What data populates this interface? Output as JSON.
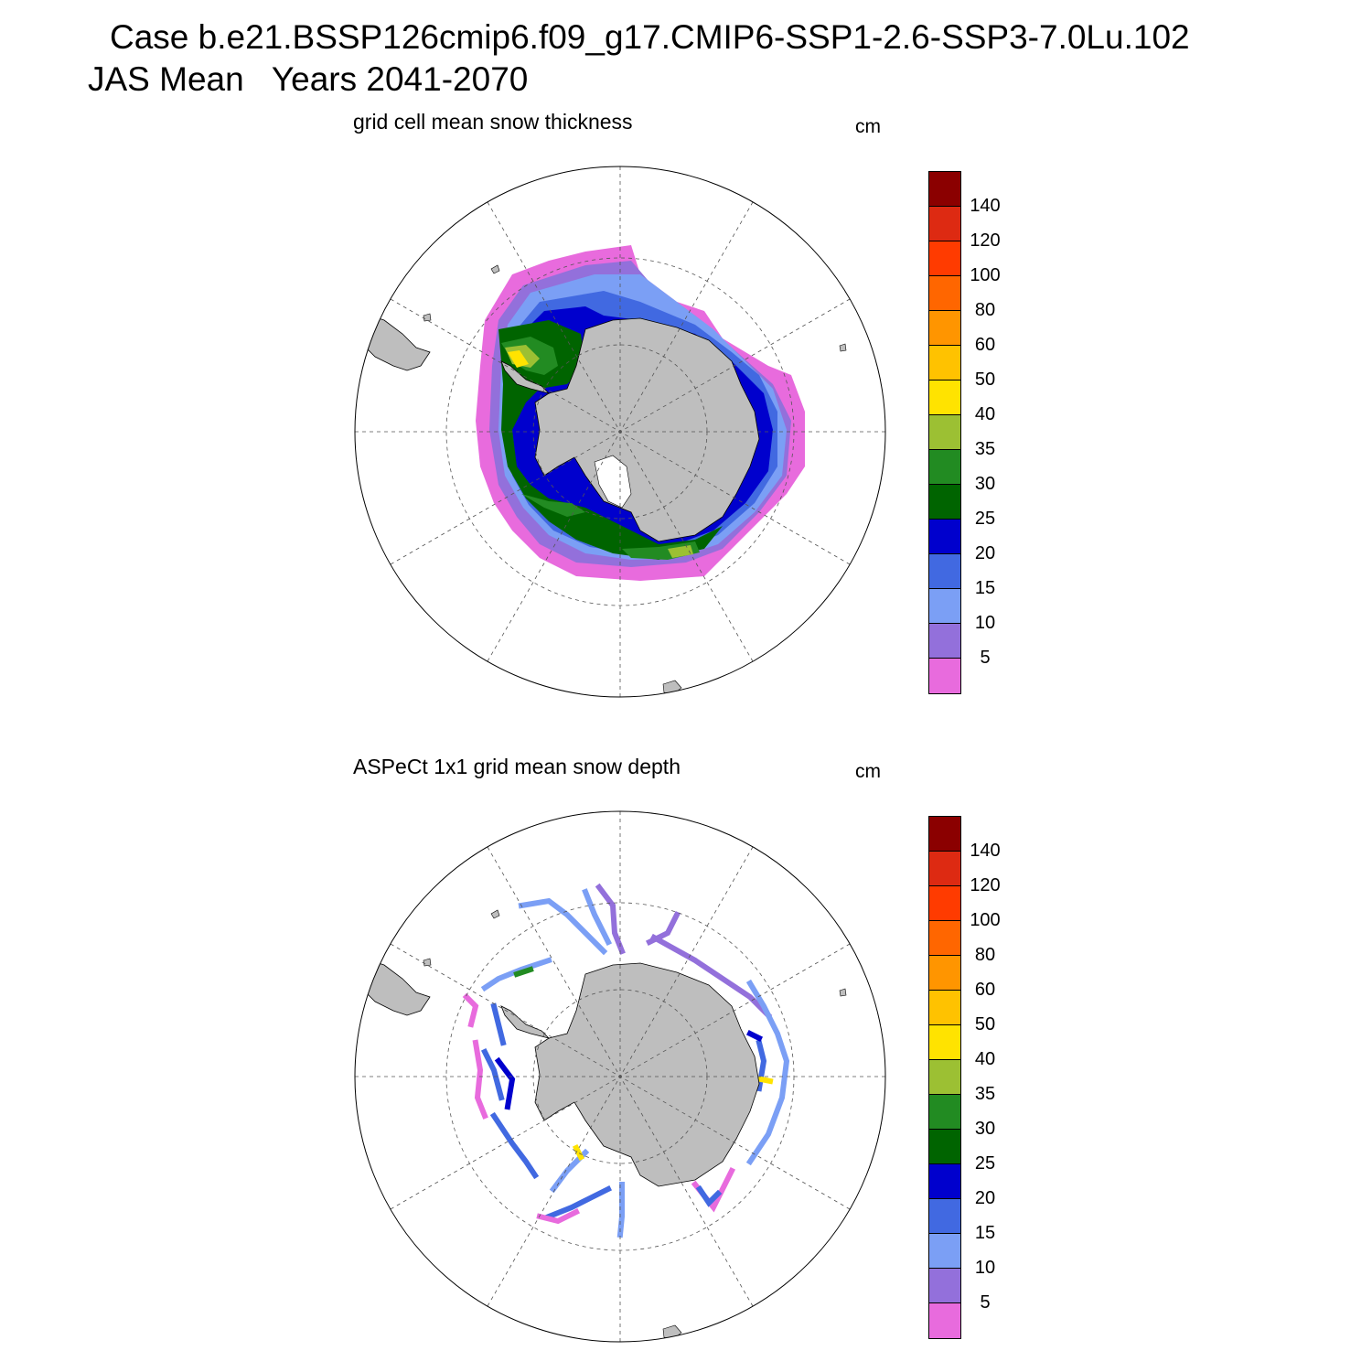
{
  "figure": {
    "title_line1": "Case b.e21.BSSP126cmip6.f09_g17.CMIP6-SSP1-2.6-SSP3-7.0Lu.102",
    "title_line2": "JAS Mean   Years 2041-2070"
  },
  "panels": [
    {
      "id": "model",
      "title": "grid cell mean snow thickness",
      "units": "cm"
    },
    {
      "id": "aspect",
      "title": "ASPeCt 1x1 grid mean snow depth",
      "units": "cm"
    }
  ],
  "colorbar": {
    "labels": [
      "140",
      "120",
      "100",
      "80",
      "60",
      "50",
      "40",
      "35",
      "30",
      "25",
      "20",
      "15",
      "10",
      "5"
    ],
    "colors_top_to_bottom": [
      "#8b0000",
      "#dd2a12",
      "#ff3b00",
      "#ff6600",
      "#ff9500",
      "#ffc200",
      "#ffe300",
      "#9cc033",
      "#228b22",
      "#006400",
      "#0000cd",
      "#4169e1",
      "#7b9ff5",
      "#9370db",
      "#e86bdd"
    ]
  },
  "map_style": {
    "land": "#bebebe",
    "grid": "dashed-gray"
  }
}
